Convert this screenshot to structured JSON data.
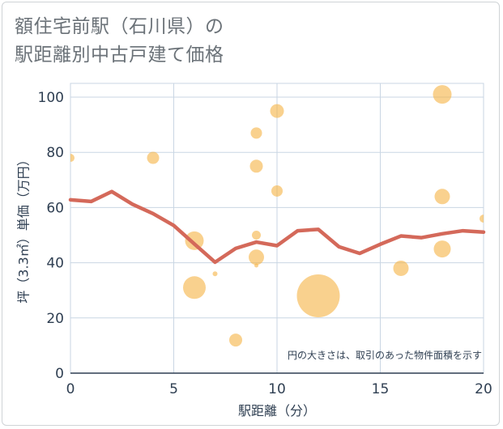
{
  "title_lines": [
    "額住宅前駅（石川県）の",
    "駅距離別中古戸建て価格"
  ],
  "chart_data": {
    "type": "scatter",
    "xlabel": "駅距離（分）",
    "ylabel": "坪（3.3㎡）単価（万円）",
    "xlim": [
      0,
      20
    ],
    "ylim": [
      0,
      105
    ],
    "xticks": [
      0,
      5,
      10,
      15,
      20
    ],
    "yticks": [
      0,
      20,
      40,
      60,
      80,
      100
    ],
    "grid": true,
    "annotation": "円の大きさは、取引のあった物件面積を示す",
    "colors": {
      "bubble": "#f5b342",
      "line": "#d4695a",
      "grid": "#c9d6e3",
      "axis": "#2f3f52"
    },
    "bubbles": [
      {
        "x": 0,
        "y": 78,
        "size": 1.0
      },
      {
        "x": 4,
        "y": 78,
        "size": 1.5
      },
      {
        "x": 6,
        "y": 48,
        "size": 2.3
      },
      {
        "x": 6,
        "y": 31,
        "size": 2.8
      },
      {
        "x": 7,
        "y": 36,
        "size": 0.6
      },
      {
        "x": 8,
        "y": 12,
        "size": 1.6
      },
      {
        "x": 9,
        "y": 87,
        "size": 1.4
      },
      {
        "x": 9,
        "y": 75,
        "size": 1.6
      },
      {
        "x": 9,
        "y": 50,
        "size": 1.1
      },
      {
        "x": 9,
        "y": 42,
        "size": 1.9
      },
      {
        "x": 9,
        "y": 39,
        "size": 0.5
      },
      {
        "x": 10,
        "y": 95,
        "size": 1.7
      },
      {
        "x": 10,
        "y": 66,
        "size": 1.4
      },
      {
        "x": 12,
        "y": 28,
        "size": 5.3
      },
      {
        "x": 16,
        "y": 38,
        "size": 1.9
      },
      {
        "x": 18,
        "y": 101,
        "size": 2.3
      },
      {
        "x": 18,
        "y": 64,
        "size": 1.9
      },
      {
        "x": 18,
        "y": 45,
        "size": 2.1
      },
      {
        "x": 20,
        "y": 56,
        "size": 1.0
      }
    ],
    "line": {
      "x": [
        0,
        1,
        2,
        3,
        4,
        5,
        6,
        7,
        8,
        9,
        10,
        11,
        12,
        13,
        14,
        15,
        16,
        17,
        18,
        19,
        20
      ],
      "y": [
        62.8,
        62.2,
        65.8,
        61.2,
        57.8,
        53.5,
        46.8,
        40.2,
        45.2,
        47.5,
        46.2,
        51.6,
        52.1,
        45.8,
        43.4,
        46.7,
        49.7,
        49.1,
        50.5,
        51.6,
        51.1
      ]
    }
  }
}
